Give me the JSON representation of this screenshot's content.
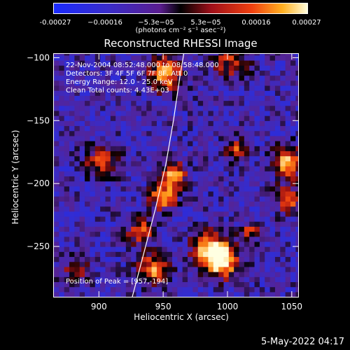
{
  "colorbar": {
    "ticks": [
      "-0.00027",
      "−0.00016",
      "−5.3e−05",
      "5.3e−05",
      "0.00016",
      "0.00027"
    ],
    "units": "(photons cm⁻² s⁻¹ asec⁻²)"
  },
  "chart_data": {
    "type": "heatmap",
    "title": "Reconstructed RHESSI Image",
    "xlabel": "Heliocentric X (arcsec)",
    "ylabel": "Heliocentric Y (arcsec)",
    "xlim": [
      865,
      1055
    ],
    "ylim": [
      -290,
      -97
    ],
    "x_ticks": [
      "900",
      "950",
      "1000",
      "1050"
    ],
    "y_ticks": [
      "−100",
      "−150",
      "−200",
      "−250"
    ],
    "x_tick_values": [
      900,
      950,
      1000,
      1050
    ],
    "y_tick_values": [
      -100,
      -150,
      -200,
      -250
    ],
    "colorbar_range": [
      -0.00027,
      0.00027
    ],
    "annotations": [
      "22-Nov-2004 08:52:48.000 to 08:58:48.000",
      "Detectors: 3F 4F 5F 6F 7F 8F, Att 0",
      "Energy Range: 12.0 - 25.0 keV",
      "Clean     Total counts: 4.43E+03"
    ],
    "peak_label": "Position of Peak = [957,-194]",
    "peak": [
      957,
      -194
    ],
    "limb_curve": [
      [
        926,
        -290
      ],
      [
        935,
        -255
      ],
      [
        944,
        -220
      ],
      [
        952,
        -185
      ],
      [
        958,
        -150
      ],
      [
        963,
        -115
      ],
      [
        966,
        -97
      ]
    ],
    "sources": [
      {
        "x": 956,
        "y": -195,
        "r": 9,
        "amp": 1.0
      },
      {
        "x": 948,
        "y": -212,
        "r": 10,
        "amp": 0.8
      },
      {
        "x": 985,
        "y": -255,
        "r": 14,
        "amp": 0.95
      },
      {
        "x": 995,
        "y": -265,
        "r": 12,
        "amp": 0.8
      },
      {
        "x": 930,
        "y": -240,
        "r": 10,
        "amp": 0.65
      },
      {
        "x": 940,
        "y": -270,
        "r": 12,
        "amp": 0.7
      },
      {
        "x": 950,
        "y": -115,
        "r": 13,
        "amp": 0.8
      },
      {
        "x": 900,
        "y": -185,
        "r": 12,
        "amp": 0.55
      },
      {
        "x": 1045,
        "y": -185,
        "r": 12,
        "amp": 0.8
      },
      {
        "x": 1045,
        "y": -215,
        "r": 10,
        "amp": 0.6
      },
      {
        "x": 1005,
        "y": -175,
        "r": 8,
        "amp": 0.55
      },
      {
        "x": 1000,
        "y": -105,
        "r": 14,
        "amp": 0.45
      },
      {
        "x": 1015,
        "y": -240,
        "r": 8,
        "amp": 0.5
      },
      {
        "x": 880,
        "y": -270,
        "r": 10,
        "amp": 0.4
      }
    ]
  },
  "footer": {
    "timestamp": "5-May-2022 04:17"
  }
}
